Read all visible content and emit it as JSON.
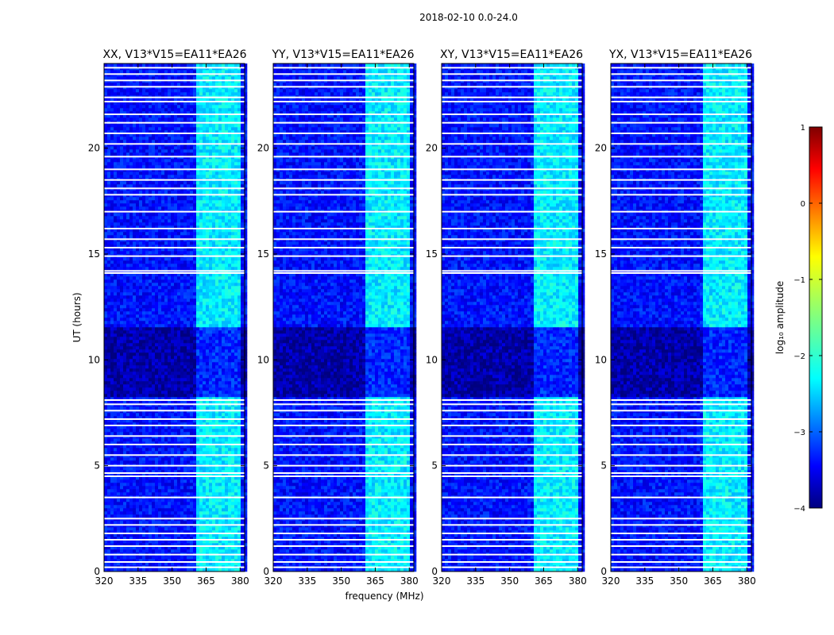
{
  "chart_data": {
    "type": "heatmap",
    "title": "2018-02-10 0.0-24.0",
    "xlabel": "frequency (MHz)",
    "ylabel": "UT (hours)",
    "xlim": [
      320,
      382
    ],
    "ylim": [
      0,
      24
    ],
    "xticks": [
      320,
      335,
      350,
      365,
      380
    ],
    "yticks": [
      0,
      5,
      10,
      15,
      20
    ],
    "xtick_labels": [
      "320",
      "335",
      "350",
      "365",
      "380"
    ],
    "ytick_labels": [
      "0",
      "5",
      "10",
      "15",
      "20"
    ],
    "colormap": "jet",
    "colorbar": {
      "label": "log₁₀ amplitude",
      "range": [
        -4,
        1
      ],
      "ticks": [
        1,
        0,
        -1,
        -2,
        -3,
        -4
      ],
      "tick_labels": [
        "1",
        "0",
        "−1",
        "−2",
        "−3",
        "−4"
      ]
    },
    "panels": [
      {
        "title": "XX, V13*V15=EA11*EA26"
      },
      {
        "title": "YY, V13*V15=EA11*EA26"
      },
      {
        "title": "XY, V13*V15=EA11*EA26"
      },
      {
        "title": "YX, V13*V15=EA11*EA26"
      }
    ],
    "background_level": -3.3,
    "quiet_period_ut": [
      8.2,
      11.6
    ],
    "quiet_level": -3.8,
    "rfi_band_mhz": [
      360,
      380
    ],
    "rfi_band_level": -2.2,
    "flagged_rows_ut": [
      0.2,
      0.45,
      0.8,
      1.2,
      1.5,
      1.8,
      2.2,
      2.5,
      3.5,
      4.5,
      4.65,
      5.0,
      5.5,
      6.0,
      6.4,
      6.9,
      7.2,
      7.6,
      7.9,
      8.1,
      14.1,
      14.2,
      14.9,
      15.3,
      15.7,
      16.2,
      17.0,
      17.8,
      18.1,
      18.5,
      19.0,
      19.6,
      20.2,
      20.7,
      21.2,
      21.6,
      22.2,
      22.4,
      22.9,
      23.2,
      23.5,
      23.8
    ]
  }
}
